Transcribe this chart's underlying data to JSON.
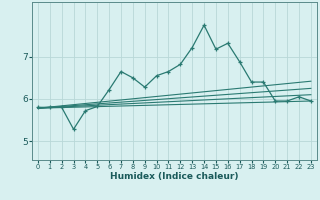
{
  "xlabel": "Humidex (Indice chaleur)",
  "bg_color": "#d8f0f0",
  "grid_color": "#b8d8d8",
  "line_color": "#2a7a72",
  "xlim": [
    -0.5,
    23.5
  ],
  "ylim": [
    4.55,
    8.3
  ],
  "yticks": [
    5,
    6,
    7
  ],
  "xticks": [
    0,
    1,
    2,
    3,
    4,
    5,
    6,
    7,
    8,
    9,
    10,
    11,
    12,
    13,
    14,
    15,
    16,
    17,
    18,
    19,
    20,
    21,
    22,
    23
  ],
  "main_x": [
    0,
    1,
    2,
    3,
    4,
    5,
    6,
    7,
    8,
    9,
    10,
    11,
    12,
    13,
    14,
    15,
    16,
    17,
    18,
    19,
    20,
    21,
    22,
    23
  ],
  "main_y": [
    5.8,
    5.8,
    5.8,
    5.28,
    5.72,
    5.82,
    6.22,
    6.65,
    6.5,
    6.28,
    6.55,
    6.65,
    6.82,
    7.22,
    7.75,
    7.18,
    7.32,
    6.88,
    6.4,
    6.4,
    5.95,
    5.95,
    6.05,
    5.95
  ],
  "lin_lines": [
    {
      "x": [
        0,
        23
      ],
      "y": [
        5.78,
        5.95
      ]
    },
    {
      "x": [
        0,
        23
      ],
      "y": [
        5.78,
        6.1
      ]
    },
    {
      "x": [
        0,
        23
      ],
      "y": [
        5.78,
        6.25
      ]
    },
    {
      "x": [
        0,
        23
      ],
      "y": [
        5.78,
        6.42
      ]
    }
  ]
}
